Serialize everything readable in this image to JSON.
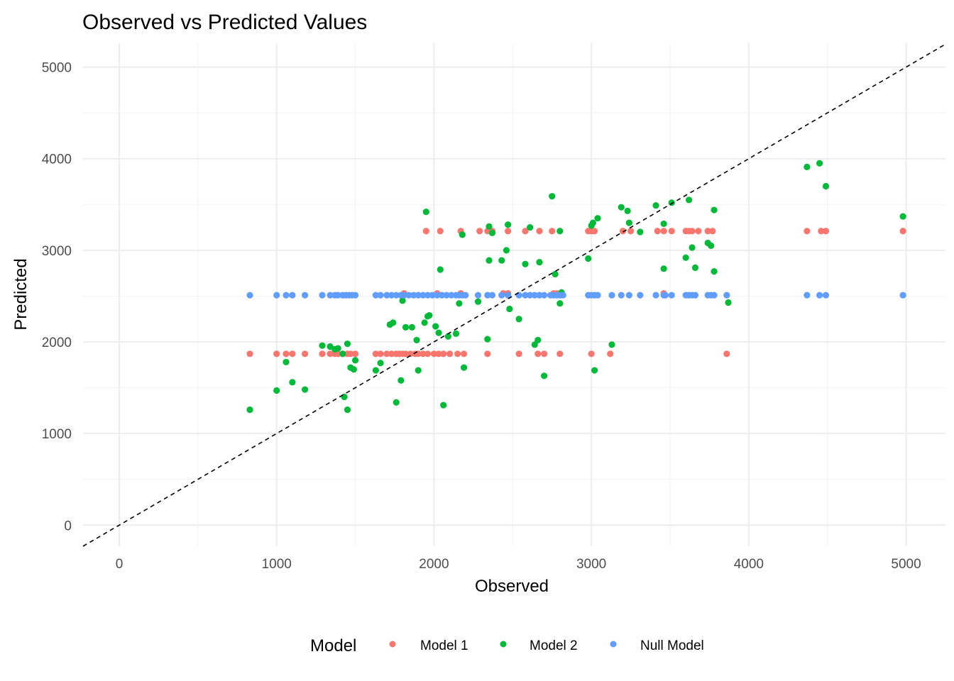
{
  "chart_data": {
    "type": "scatter",
    "title": "Observed vs Predicted Values",
    "xlabel": "Observed",
    "ylabel": "Predicted",
    "xlim": [
      -230,
      5250
    ],
    "ylim": [
      -230,
      5260
    ],
    "x_ticks": [
      0,
      1000,
      2000,
      3000,
      4000,
      5000
    ],
    "y_ticks": [
      0,
      1000,
      2000,
      3000,
      4000,
      5000
    ],
    "x_tick_labels": [
      "0",
      "1000",
      "2000",
      "3000",
      "4000",
      "5000"
    ],
    "y_tick_labels": [
      "0",
      "1000",
      "2000",
      "3000",
      "4000",
      "5000"
    ],
    "grid": true,
    "reference_line": {
      "style": "dashed",
      "color": "#000000",
      "slope": 1,
      "intercept": 0
    },
    "legend": {
      "title": "Model",
      "position": "bottom"
    },
    "series": [
      {
        "name": "Model 1",
        "color": "#F8766D",
        "points": [
          [
            830,
            1870
          ],
          [
            1000,
            1870
          ],
          [
            1060,
            1870
          ],
          [
            1100,
            1870
          ],
          [
            1180,
            1870
          ],
          [
            1290,
            1870
          ],
          [
            1340,
            1870
          ],
          [
            1370,
            1870
          ],
          [
            1390,
            1870
          ],
          [
            1420,
            1870
          ],
          [
            1450,
            1870
          ],
          [
            1470,
            1870
          ],
          [
            1500,
            1870
          ],
          [
            1630,
            1870
          ],
          [
            1660,
            1870
          ],
          [
            1700,
            1870
          ],
          [
            1730,
            1870
          ],
          [
            1760,
            1870
          ],
          [
            1780,
            1870
          ],
          [
            1800,
            1870
          ],
          [
            1820,
            1870
          ],
          [
            1850,
            1870
          ],
          [
            1880,
            1870
          ],
          [
            1900,
            1870
          ],
          [
            1930,
            1870
          ],
          [
            1960,
            1870
          ],
          [
            2000,
            1870
          ],
          [
            2030,
            1870
          ],
          [
            2060,
            1870
          ],
          [
            2100,
            1870
          ],
          [
            2150,
            1870
          ],
          [
            2190,
            1870
          ],
          [
            2340,
            1870
          ],
          [
            2540,
            1870
          ],
          [
            2660,
            1870
          ],
          [
            2700,
            1870
          ],
          [
            2800,
            1870
          ],
          [
            3000,
            1870
          ],
          [
            3120,
            1870
          ],
          [
            3860,
            1870
          ],
          [
            1810,
            2530
          ],
          [
            2020,
            2530
          ],
          [
            2170,
            2530
          ],
          [
            2440,
            2530
          ],
          [
            2470,
            2530
          ],
          [
            2760,
            2530
          ],
          [
            2780,
            2530
          ],
          [
            3460,
            2530
          ],
          [
            1950,
            3210
          ],
          [
            2040,
            3210
          ],
          [
            2170,
            3210
          ],
          [
            2290,
            3210
          ],
          [
            2340,
            3210
          ],
          [
            2370,
            3210
          ],
          [
            2470,
            3210
          ],
          [
            2580,
            3210
          ],
          [
            2670,
            3210
          ],
          [
            2750,
            3210
          ],
          [
            2980,
            3210
          ],
          [
            3000,
            3210
          ],
          [
            3020,
            3210
          ],
          [
            3200,
            3210
          ],
          [
            3250,
            3210
          ],
          [
            3420,
            3210
          ],
          [
            3460,
            3210
          ],
          [
            3510,
            3210
          ],
          [
            3600,
            3210
          ],
          [
            3620,
            3210
          ],
          [
            3640,
            3210
          ],
          [
            3680,
            3210
          ],
          [
            3740,
            3210
          ],
          [
            3770,
            3210
          ],
          [
            4370,
            3210
          ],
          [
            4460,
            3210
          ],
          [
            4490,
            3210
          ],
          [
            4980,
            3210
          ]
        ]
      },
      {
        "name": "Model 2",
        "color": "#00BA38",
        "points": [
          [
            830,
            1260
          ],
          [
            1000,
            1470
          ],
          [
            1060,
            1780
          ],
          [
            1100,
            1560
          ],
          [
            1180,
            1480
          ],
          [
            1290,
            1960
          ],
          [
            1340,
            1950
          ],
          [
            1370,
            1920
          ],
          [
            1390,
            1930
          ],
          [
            1420,
            1870
          ],
          [
            1430,
            1400
          ],
          [
            1450,
            1980
          ],
          [
            1450,
            1260
          ],
          [
            1470,
            1720
          ],
          [
            1490,
            1700
          ],
          [
            1500,
            1800
          ],
          [
            1630,
            1690
          ],
          [
            1660,
            1770
          ],
          [
            1720,
            2190
          ],
          [
            1740,
            2210
          ],
          [
            1760,
            1340
          ],
          [
            1790,
            1580
          ],
          [
            1800,
            2450
          ],
          [
            1820,
            2160
          ],
          [
            1860,
            2160
          ],
          [
            1890,
            2020
          ],
          [
            1900,
            1690
          ],
          [
            1940,
            2210
          ],
          [
            1950,
            3420
          ],
          [
            1960,
            2280
          ],
          [
            1970,
            2290
          ],
          [
            2010,
            2170
          ],
          [
            2030,
            2100
          ],
          [
            2040,
            2790
          ],
          [
            2060,
            1310
          ],
          [
            2090,
            2060
          ],
          [
            2140,
            2090
          ],
          [
            2160,
            2420
          ],
          [
            2180,
            3170
          ],
          [
            2190,
            1720
          ],
          [
            2280,
            2440
          ],
          [
            2340,
            2030
          ],
          [
            2350,
            3260
          ],
          [
            2350,
            2890
          ],
          [
            2370,
            3190
          ],
          [
            2430,
            2890
          ],
          [
            2460,
            3000
          ],
          [
            2470,
            3280
          ],
          [
            2480,
            2360
          ],
          [
            2540,
            2250
          ],
          [
            2580,
            2850
          ],
          [
            2610,
            3250
          ],
          [
            2640,
            1970
          ],
          [
            2660,
            2020
          ],
          [
            2670,
            2870
          ],
          [
            2700,
            1630
          ],
          [
            2750,
            3590
          ],
          [
            2770,
            2740
          ],
          [
            2800,
            2420
          ],
          [
            2800,
            3210
          ],
          [
            2810,
            2540
          ],
          [
            2980,
            2910
          ],
          [
            3000,
            3270
          ],
          [
            3010,
            3300
          ],
          [
            3020,
            1690
          ],
          [
            3040,
            3350
          ],
          [
            3130,
            1970
          ],
          [
            3190,
            3470
          ],
          [
            3230,
            3430
          ],
          [
            3240,
            3300
          ],
          [
            3310,
            3200
          ],
          [
            3410,
            3490
          ],
          [
            3460,
            3290
          ],
          [
            3460,
            2800
          ],
          [
            3510,
            3520
          ],
          [
            3600,
            2920
          ],
          [
            3620,
            3550
          ],
          [
            3640,
            3030
          ],
          [
            3660,
            2810
          ],
          [
            3740,
            3080
          ],
          [
            3760,
            3050
          ],
          [
            3780,
            3440
          ],
          [
            3780,
            2770
          ],
          [
            3870,
            2430
          ],
          [
            4370,
            3910
          ],
          [
            4450,
            3950
          ],
          [
            4490,
            3700
          ],
          [
            4980,
            3370
          ]
        ]
      },
      {
        "name": "Null Model",
        "color": "#619CFF",
        "points": [
          [
            830,
            2510
          ],
          [
            1000,
            2510
          ],
          [
            1060,
            2510
          ],
          [
            1100,
            2510
          ],
          [
            1180,
            2510
          ],
          [
            1290,
            2510
          ],
          [
            1340,
            2510
          ],
          [
            1370,
            2510
          ],
          [
            1390,
            2510
          ],
          [
            1420,
            2510
          ],
          [
            1440,
            2510
          ],
          [
            1460,
            2510
          ],
          [
            1480,
            2510
          ],
          [
            1500,
            2510
          ],
          [
            1630,
            2510
          ],
          [
            1660,
            2510
          ],
          [
            1700,
            2510
          ],
          [
            1730,
            2510
          ],
          [
            1760,
            2510
          ],
          [
            1790,
            2510
          ],
          [
            1810,
            2510
          ],
          [
            1840,
            2510
          ],
          [
            1870,
            2510
          ],
          [
            1900,
            2510
          ],
          [
            1930,
            2510
          ],
          [
            1960,
            2510
          ],
          [
            1990,
            2510
          ],
          [
            2020,
            2510
          ],
          [
            2050,
            2510
          ],
          [
            2080,
            2510
          ],
          [
            2110,
            2510
          ],
          [
            2140,
            2510
          ],
          [
            2160,
            2510
          ],
          [
            2180,
            2510
          ],
          [
            2200,
            2510
          ],
          [
            2280,
            2510
          ],
          [
            2340,
            2510
          ],
          [
            2370,
            2510
          ],
          [
            2430,
            2510
          ],
          [
            2470,
            2510
          ],
          [
            2540,
            2510
          ],
          [
            2580,
            2510
          ],
          [
            2610,
            2510
          ],
          [
            2640,
            2510
          ],
          [
            2670,
            2510
          ],
          [
            2700,
            2510
          ],
          [
            2740,
            2510
          ],
          [
            2760,
            2510
          ],
          [
            2780,
            2510
          ],
          [
            2800,
            2510
          ],
          [
            2820,
            2510
          ],
          [
            2980,
            2510
          ],
          [
            3000,
            2510
          ],
          [
            3020,
            2510
          ],
          [
            3040,
            2510
          ],
          [
            3130,
            2510
          ],
          [
            3190,
            2510
          ],
          [
            3240,
            2510
          ],
          [
            3310,
            2510
          ],
          [
            3410,
            2510
          ],
          [
            3460,
            2510
          ],
          [
            3470,
            2510
          ],
          [
            3510,
            2510
          ],
          [
            3600,
            2510
          ],
          [
            3620,
            2510
          ],
          [
            3640,
            2510
          ],
          [
            3660,
            2510
          ],
          [
            3740,
            2510
          ],
          [
            3760,
            2510
          ],
          [
            3780,
            2510
          ],
          [
            3860,
            2510
          ],
          [
            4370,
            2510
          ],
          [
            4450,
            2510
          ],
          [
            4490,
            2510
          ],
          [
            4980,
            2510
          ]
        ]
      }
    ]
  }
}
